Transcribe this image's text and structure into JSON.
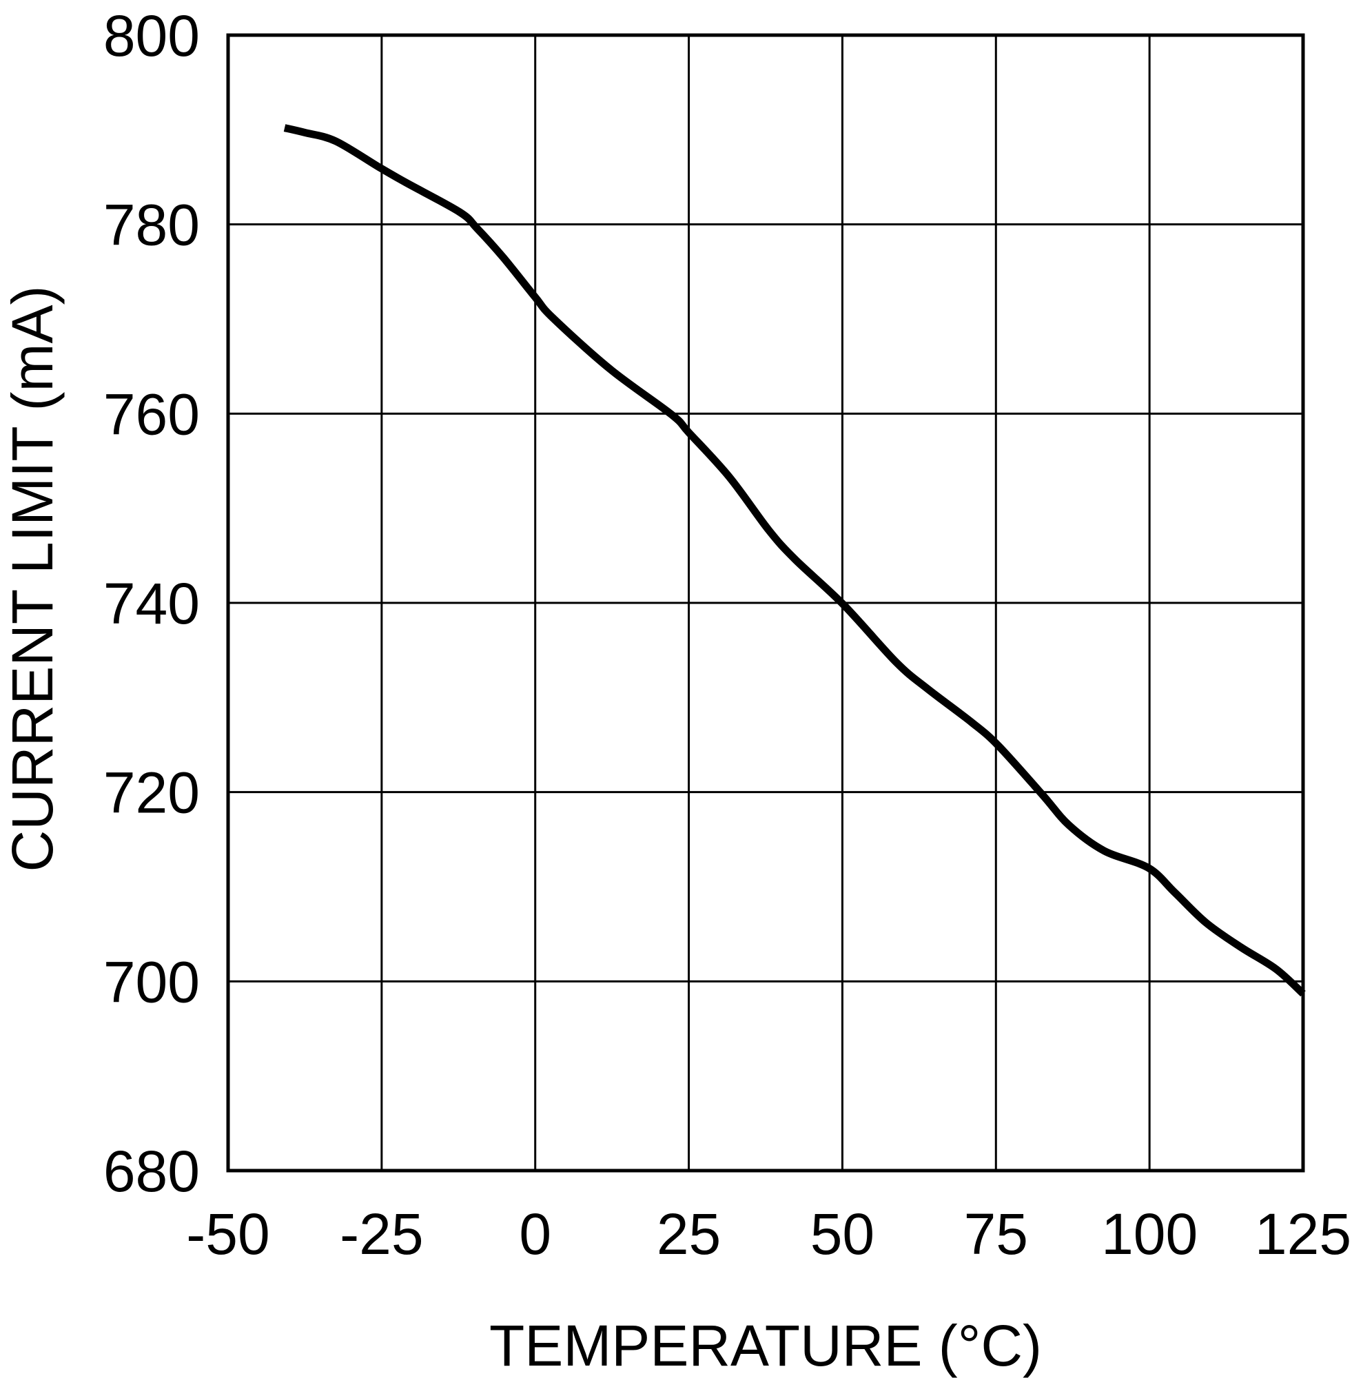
{
  "chart_data": {
    "type": "line",
    "title": "",
    "xlabel": "TEMPERATURE (°C)",
    "ylabel": "CURRENT LIMIT (mA)",
    "xlim": [
      -50,
      125
    ],
    "ylim": [
      680,
      800
    ],
    "xticks": [
      -50,
      -25,
      0,
      25,
      50,
      75,
      100,
      125
    ],
    "yticks": [
      680,
      700,
      720,
      740,
      760,
      780,
      800
    ],
    "xtick_labels": [
      "-50",
      "-25",
      "0",
      "25",
      "50",
      "75",
      "100",
      "125"
    ],
    "ytick_labels": [
      "680",
      "700",
      "720",
      "740",
      "760",
      "780",
      "800"
    ],
    "grid": true,
    "legend": "none",
    "line_color": "#000000",
    "series": [
      {
        "name": "Current Limit",
        "x": [
          -40.8,
          -37.5,
          -32.5,
          -25.3,
          -21,
          -12.3,
          -9.5,
          -5.2,
          0,
          2.9,
          12.2,
          22.2,
          25,
          31.6,
          38,
          42.3,
          50.2,
          58.8,
          63.9,
          71,
          75.4,
          82.6,
          86.9,
          92.6,
          99.8,
          104.1,
          109.2,
          114.9,
          120.6,
          125
        ],
        "y": [
          790.2,
          789.7,
          788.8,
          786,
          784.4,
          781.3,
          779.6,
          776.5,
          772.3,
          770.1,
          764.7,
          759.9,
          758,
          753.3,
          747.7,
          744.6,
          739.8,
          733.7,
          730.9,
          727.4,
          724.9,
          719.7,
          716.5,
          713.8,
          712,
          709.4,
          706.2,
          703.6,
          701.3,
          698.7
        ]
      }
    ]
  }
}
